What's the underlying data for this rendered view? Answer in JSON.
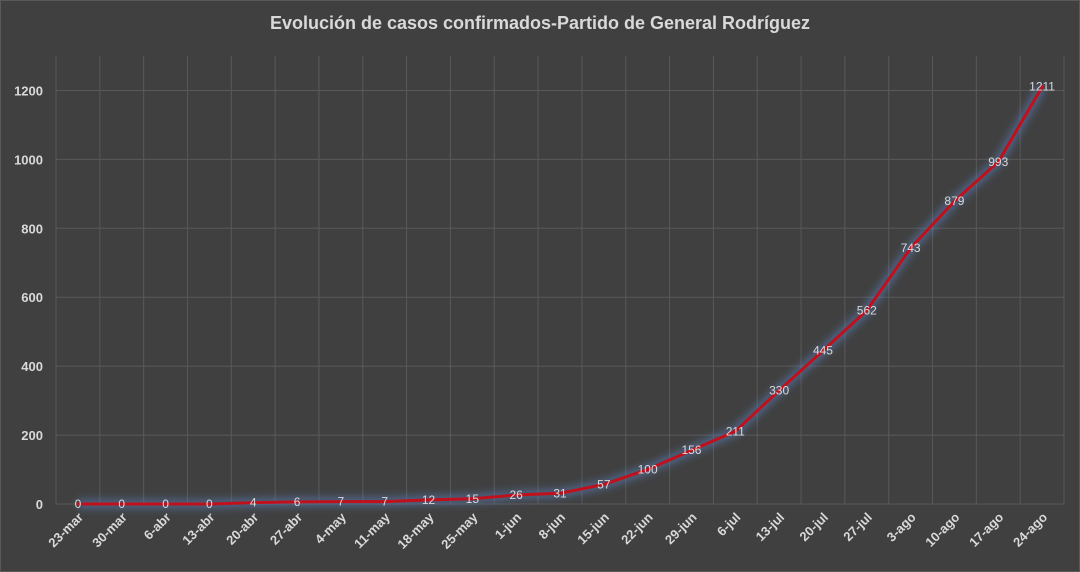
{
  "chart_data": {
    "type": "line",
    "title": "Evolución  de casos confirmados-Partido  de General Rodríguez",
    "xlabel": "",
    "ylabel": "",
    "categories": [
      "23-mar",
      "30-mar",
      "6-abr",
      "13-abr",
      "20-abr",
      "27-abr",
      "4-may",
      "11-may",
      "18-may",
      "25-may",
      "1-jun",
      "8-jun",
      "15-jun",
      "22-jun",
      "29-jun",
      "6-jul",
      "13-jul",
      "20-jul",
      "27-jul",
      "3-ago",
      "10-ago",
      "17-ago",
      "24-ago"
    ],
    "series": [
      {
        "values": [
          0,
          0,
          0,
          0,
          4,
          6,
          7,
          7,
          12,
          15,
          26,
          31,
          57,
          100,
          156,
          211,
          330,
          445,
          562,
          743,
          879,
          993,
          1211
        ]
      }
    ],
    "ylim": [
      0,
      1300
    ],
    "yticks": [
      0,
      200,
      400,
      600,
      800,
      1000,
      1200
    ],
    "grid": true,
    "legend": "none",
    "colors": {
      "line": "#c0101c",
      "glow": "#5b84c4",
      "grid": "#595959",
      "text": "#d9d9d9",
      "background": "#404040"
    }
  }
}
